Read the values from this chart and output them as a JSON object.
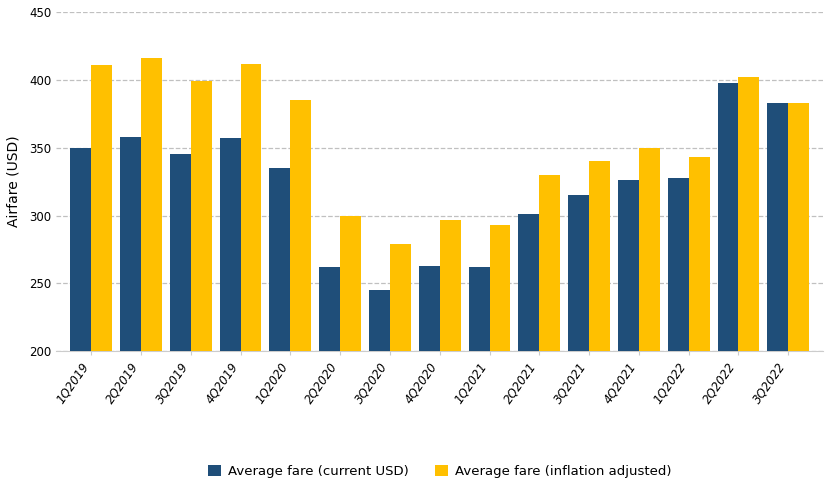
{
  "categories": [
    "1Q2019",
    "2Q2019",
    "3Q2019",
    "4Q2019",
    "1Q2020",
    "2Q2020",
    "3Q2020",
    "4Q2020",
    "1Q2021",
    "2Q2021",
    "3Q2021",
    "4Q2021",
    "1Q2022",
    "2Q2022",
    "3Q2022"
  ],
  "current_usd": [
    350,
    358,
    345,
    357,
    335,
    262,
    245,
    263,
    262,
    301,
    315,
    326,
    328,
    398,
    383
  ],
  "inflation_adjusted": [
    411,
    416,
    399,
    412,
    385,
    300,
    279,
    297,
    293,
    330,
    340,
    350,
    343,
    402,
    383
  ],
  "bar_color_current": "#1f4e79",
  "bar_color_inflation": "#ffc000",
  "ylabel": "Airfare (USD)",
  "ylim_min": 200,
  "ylim_max": 450,
  "yticks": [
    200,
    250,
    300,
    350,
    400,
    450
  ],
  "legend_current": "Average fare (current USD)",
  "legend_inflation": "Average fare (inflation adjusted)",
  "background_color": "#ffffff",
  "grid_color": "#c0c0c0",
  "bar_width": 0.42,
  "tick_fontsize": 8.5,
  "ylabel_fontsize": 10,
  "legend_fontsize": 9.5
}
